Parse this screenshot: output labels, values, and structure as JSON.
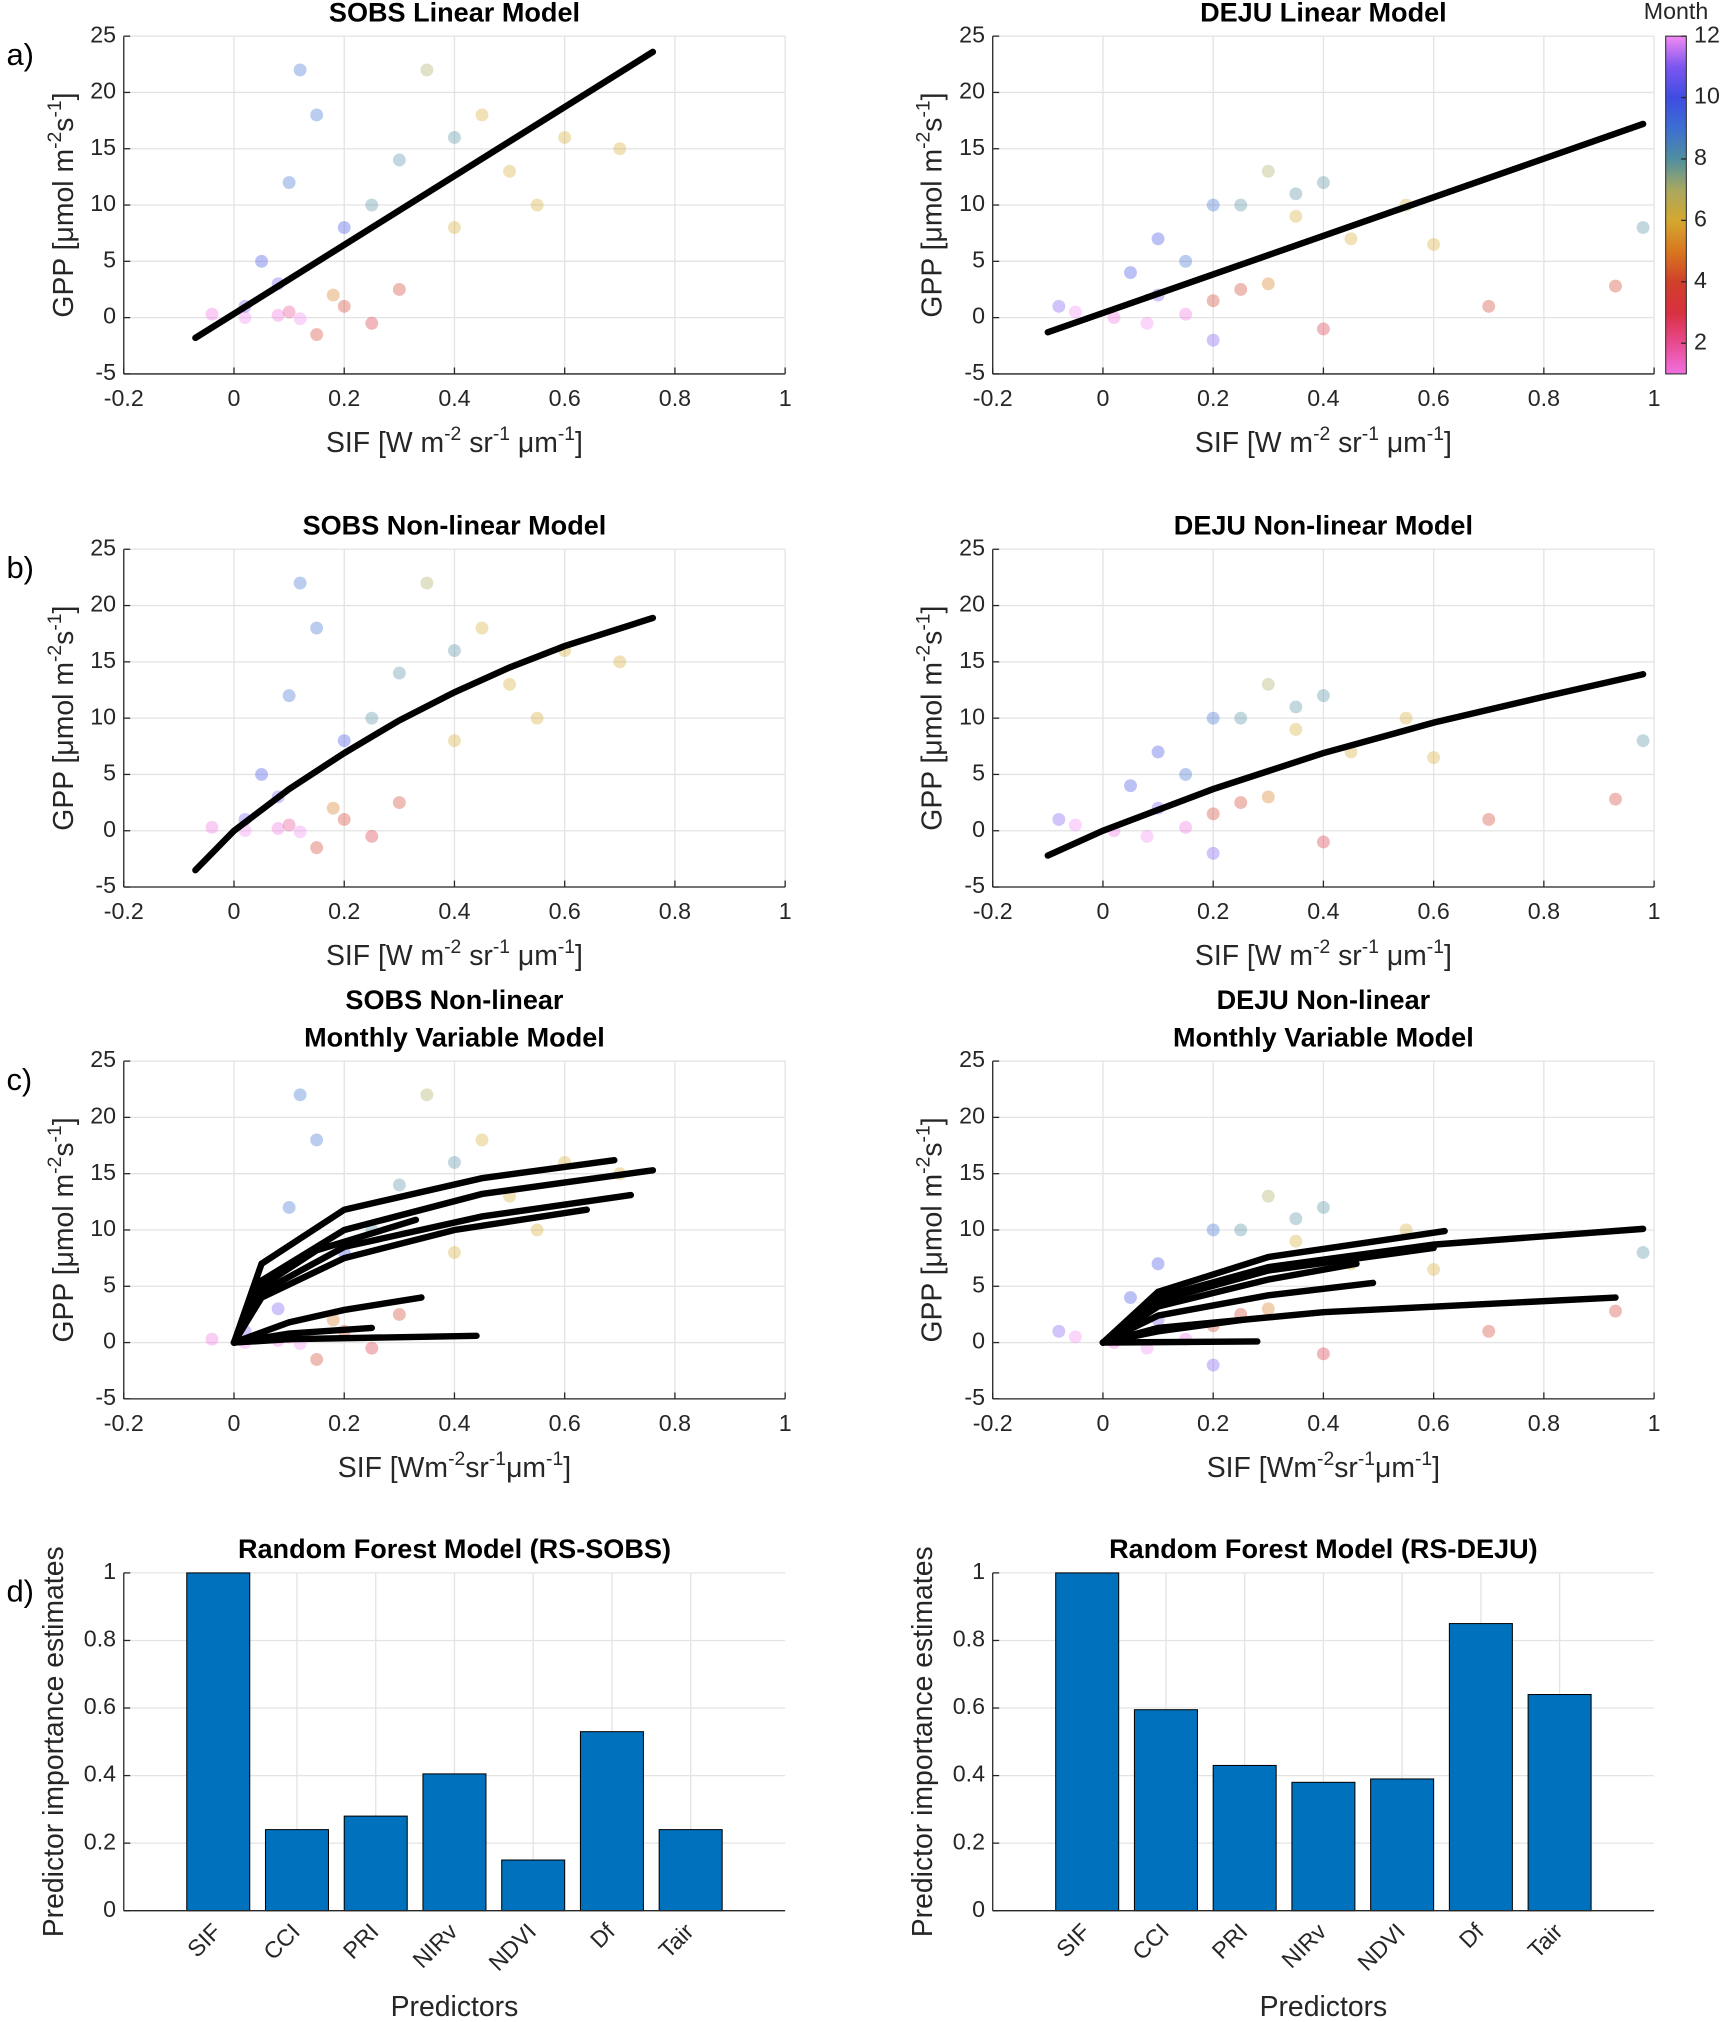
{
  "month_colors": [
    "#f070e0",
    "#e84a90",
    "#d83040",
    "#d0402a",
    "#d8781e",
    "#d4a830",
    "#a8a860",
    "#4f8ea0",
    "#3d6fd2",
    "#3f4ce2",
    "#7c56f0",
    "#f28af2"
  ],
  "chart_data": [
    {
      "type": "scatter",
      "title": "SOBS Linear Model",
      "panel_label": "a)",
      "xlabel": [
        "SIF [W m",
        "-2",
        " sr",
        "-1",
        " μm",
        "-1",
        "]"
      ],
      "ylabel": [
        "GPP [μmol m",
        "-2",
        "s",
        "-1",
        "]"
      ],
      "xlim": [
        -0.2,
        1
      ],
      "ylim": [
        -5,
        25
      ],
      "xticks": [
        -0.2,
        0,
        0.2,
        0.4,
        0.6,
        0.8,
        1
      ],
      "yticks": [
        -5,
        0,
        5,
        10,
        15,
        20,
        25
      ],
      "grid": true,
      "points": {
        "x": [
          0.02,
          0.08,
          0.12,
          -0.04,
          0.1,
          0.15,
          0.2,
          0.25,
          0.3,
          0.18,
          0.4,
          0.5,
          0.55,
          0.6,
          0.45,
          0.7,
          0.35,
          0.3,
          0.4,
          0.25,
          0.05,
          0.1,
          0.15,
          0.2,
          0.08,
          0.02,
          0.12
        ],
        "y": [
          0,
          0.2,
          -0.1,
          0.3,
          0.5,
          -1.5,
          1,
          -0.5,
          2.5,
          2,
          8,
          13,
          10,
          16,
          18,
          15,
          22,
          14,
          16,
          10,
          5,
          12,
          18,
          8,
          3,
          1,
          22
        ],
        "month": [
          12,
          1,
          12,
          1,
          2,
          4,
          4,
          3,
          4,
          5,
          6,
          6,
          6,
          6,
          6,
          6,
          7,
          8,
          8,
          8,
          10,
          9,
          9,
          10,
          11,
          11,
          9
        ]
      },
      "lines": [
        {
          "color": "#000000",
          "x": [
            -0.07,
            0.76
          ],
          "y": [
            -1.8,
            23.6
          ]
        }
      ]
    },
    {
      "type": "scatter",
      "title": "DEJU Linear Model",
      "xlabel": [
        "SIF [W m",
        "-2",
        " sr",
        "-1",
        " μm",
        "-1",
        "]"
      ],
      "ylabel": [
        "GPP [μmol m",
        "-2",
        "s",
        "-1",
        "]"
      ],
      "xlim": [
        -0.2,
        1
      ],
      "ylim": [
        -5,
        25
      ],
      "xticks": [
        -0.2,
        0,
        0.2,
        0.4,
        0.6,
        0.8,
        1
      ],
      "yticks": [
        -5,
        0,
        5,
        10,
        15,
        20,
        25
      ],
      "grid": true,
      "points": {
        "x": [
          -0.05,
          0.02,
          0.08,
          0.15,
          -0.08,
          0.2,
          0.25,
          0.3,
          0.4,
          0.7,
          0.93,
          0.35,
          0.45,
          0.55,
          0.3,
          0.6,
          0.25,
          0.35,
          0.4,
          0.98,
          0.05,
          0.1,
          0.15,
          0.2,
          0.1,
          0.2
        ],
        "y": [
          0.5,
          0,
          -0.5,
          0.3,
          1,
          1.5,
          2.5,
          3,
          -1,
          1,
          2.8,
          9,
          7,
          10,
          13,
          6.5,
          10,
          11,
          12,
          8,
          4,
          7,
          5,
          10,
          2,
          -2
        ],
        "month": [
          12,
          1,
          12,
          1,
          11,
          4,
          4,
          5,
          3,
          4,
          4,
          6,
          6,
          6,
          7,
          6,
          8,
          8,
          8,
          8,
          10,
          10,
          9,
          9,
          11,
          11
        ]
      },
      "lines": [
        {
          "color": "#000000",
          "x": [
            -0.1,
            0.98
          ],
          "y": [
            -1.3,
            17.2
          ]
        }
      ],
      "colorbar": {
        "label": "Month",
        "lim": [
          1,
          12
        ],
        "ticks": [
          2,
          4,
          6,
          8,
          10,
          12
        ]
      }
    },
    {
      "type": "scatter",
      "title": "SOBS Non-linear Model",
      "panel_label": "b)",
      "xlabel": [
        "SIF [W m",
        "-2",
        " sr",
        "-1",
        " μm",
        "-1",
        "]"
      ],
      "ylabel": [
        "GPP [μmol m",
        "-2",
        "s",
        "-1",
        "]"
      ],
      "xlim": [
        -0.2,
        1
      ],
      "ylim": [
        -5,
        25
      ],
      "xticks": [
        -0.2,
        0,
        0.2,
        0.4,
        0.6,
        0.8,
        1
      ],
      "yticks": [
        -5,
        0,
        5,
        10,
        15,
        20,
        25
      ],
      "grid": true,
      "points": {
        "x": [
          0.02,
          0.08,
          0.12,
          -0.04,
          0.1,
          0.15,
          0.2,
          0.25,
          0.3,
          0.18,
          0.4,
          0.5,
          0.55,
          0.6,
          0.45,
          0.7,
          0.35,
          0.3,
          0.4,
          0.25,
          0.05,
          0.1,
          0.15,
          0.2,
          0.08,
          0.02,
          0.12
        ],
        "y": [
          0,
          0.2,
          -0.1,
          0.3,
          0.5,
          -1.5,
          1,
          -0.5,
          2.5,
          2,
          8,
          13,
          10,
          16,
          18,
          15,
          22,
          14,
          16,
          10,
          5,
          12,
          18,
          8,
          3,
          1,
          22
        ],
        "month": [
          12,
          1,
          12,
          1,
          2,
          4,
          4,
          3,
          4,
          5,
          6,
          6,
          6,
          6,
          6,
          6,
          7,
          8,
          8,
          8,
          10,
          9,
          9,
          10,
          11,
          11,
          9
        ]
      },
      "lines": [
        {
          "color": "#000000",
          "x": [
            -0.07,
            0,
            0.1,
            0.2,
            0.3,
            0.4,
            0.5,
            0.6,
            0.76
          ],
          "y": [
            -3.5,
            0,
            3.7,
            6.9,
            9.8,
            12.3,
            14.5,
            16.4,
            18.9
          ]
        }
      ]
    },
    {
      "type": "scatter",
      "title": "DEJU Non-linear Model",
      "xlabel": [
        "SIF [W m",
        "-2",
        " sr",
        "-1",
        " μm",
        "-1",
        "]"
      ],
      "ylabel": [
        "GPP [μmol m",
        "-2",
        "s",
        "-1",
        "]"
      ],
      "xlim": [
        -0.2,
        1
      ],
      "ylim": [
        -5,
        25
      ],
      "xticks": [
        -0.2,
        0,
        0.2,
        0.4,
        0.6,
        0.8,
        1
      ],
      "yticks": [
        -5,
        0,
        5,
        10,
        15,
        20,
        25
      ],
      "grid": true,
      "points": {
        "x": [
          -0.05,
          0.02,
          0.08,
          0.15,
          -0.08,
          0.2,
          0.25,
          0.3,
          0.4,
          0.7,
          0.93,
          0.35,
          0.45,
          0.55,
          0.3,
          0.6,
          0.25,
          0.35,
          0.4,
          0.98,
          0.05,
          0.1,
          0.15,
          0.2,
          0.1,
          0.2
        ],
        "y": [
          0.5,
          0,
          -0.5,
          0.3,
          1,
          1.5,
          2.5,
          3,
          -1,
          1,
          2.8,
          9,
          7,
          10,
          13,
          6.5,
          10,
          11,
          12,
          8,
          4,
          7,
          5,
          10,
          2,
          -2
        ],
        "month": [
          12,
          1,
          12,
          1,
          11,
          4,
          4,
          5,
          3,
          4,
          4,
          6,
          6,
          6,
          7,
          6,
          8,
          8,
          8,
          8,
          10,
          10,
          9,
          9,
          11,
          11
        ]
      },
      "lines": [
        {
          "color": "#000000",
          "x": [
            -0.1,
            0,
            0.2,
            0.4,
            0.6,
            0.8,
            0.98
          ],
          "y": [
            -2.2,
            0,
            3.7,
            6.9,
            9.6,
            11.9,
            13.9
          ]
        }
      ]
    },
    {
      "type": "scatter",
      "title": [
        "SOBS Non-linear",
        "Monthly Variable Model"
      ],
      "panel_label": "c)",
      "xlabel": [
        "SIF [Wm",
        "-2",
        "sr",
        "-1",
        "μm",
        "-1",
        "]"
      ],
      "ylabel": [
        "GPP [μmol m",
        "-2",
        "s",
        "-1",
        "]"
      ],
      "xlim": [
        -0.2,
        1
      ],
      "ylim": [
        -5,
        25
      ],
      "xticks": [
        -0.2,
        0,
        0.2,
        0.4,
        0.6,
        0.8,
        1
      ],
      "yticks": [
        -5,
        0,
        5,
        10,
        15,
        20,
        25
      ],
      "grid": true,
      "points": {
        "x": [
          0.02,
          0.08,
          0.12,
          -0.04,
          0.1,
          0.15,
          0.2,
          0.25,
          0.3,
          0.18,
          0.4,
          0.5,
          0.55,
          0.6,
          0.45,
          0.7,
          0.35,
          0.3,
          0.4,
          0.25,
          0.05,
          0.1,
          0.15,
          0.2,
          0.08,
          0.02,
          0.12
        ],
        "y": [
          0,
          0.2,
          -0.1,
          0.3,
          0.5,
          -1.5,
          1,
          -0.5,
          2.5,
          2,
          8,
          13,
          10,
          16,
          18,
          15,
          22,
          14,
          16,
          10,
          5,
          12,
          18,
          8,
          3,
          1,
          22
        ],
        "month": [
          12,
          1,
          12,
          1,
          2,
          4,
          4,
          3,
          4,
          5,
          6,
          6,
          6,
          6,
          6,
          6,
          7,
          8,
          8,
          8,
          10,
          9,
          9,
          10,
          11,
          11,
          9
        ]
      },
      "lines": [
        {
          "color": "#000000",
          "x": [
            0,
            0.05,
            0.2,
            0.45,
            0.69
          ],
          "y": [
            0,
            7,
            11.8,
            14.6,
            16.2
          ]
        },
        {
          "color": "#000000",
          "x": [
            0,
            0.05,
            0.2,
            0.45,
            0.76
          ],
          "y": [
            0,
            5.5,
            10,
            13.2,
            15.3
          ]
        },
        {
          "color": "#000000",
          "x": [
            0,
            0.05,
            0.2,
            0.45,
            0.72
          ],
          "y": [
            0,
            4.5,
            8.5,
            11.2,
            13.1
          ]
        },
        {
          "color": "#000000",
          "x": [
            0,
            0.05,
            0.2,
            0.4,
            0.64
          ],
          "y": [
            0,
            4,
            7.5,
            10,
            11.8
          ]
        },
        {
          "color": "#000000",
          "x": [
            0,
            0.05,
            0.15,
            0.33
          ],
          "y": [
            0,
            5,
            8.2,
            10.9
          ]
        },
        {
          "color": "#000000",
          "x": [
            0,
            0.1,
            0.2,
            0.34
          ],
          "y": [
            0,
            1.8,
            2.9,
            4
          ]
        },
        {
          "color": "#000000",
          "x": [
            0,
            0.1,
            0.25
          ],
          "y": [
            0,
            0.8,
            1.3
          ]
        },
        {
          "color": "#000000",
          "x": [
            0,
            0.1,
            0.44
          ],
          "y": [
            0,
            0.3,
            0.6
          ]
        }
      ]
    },
    {
      "type": "scatter",
      "title": [
        "DEJU Non-linear",
        "Monthly Variable Model"
      ],
      "xlabel": [
        "SIF [Wm",
        "-2",
        "sr",
        "-1",
        "μm",
        "-1",
        "]"
      ],
      "ylabel": [
        "GPP [μmol m",
        "-2",
        "s",
        "-1",
        "]"
      ],
      "xlim": [
        -0.2,
        1
      ],
      "ylim": [
        -5,
        25
      ],
      "xticks": [
        -0.2,
        0,
        0.2,
        0.4,
        0.6,
        0.8,
        1
      ],
      "yticks": [
        -5,
        0,
        5,
        10,
        15,
        20,
        25
      ],
      "grid": true,
      "points": {
        "x": [
          -0.05,
          0.02,
          0.08,
          0.15,
          -0.08,
          0.2,
          0.25,
          0.3,
          0.4,
          0.7,
          0.93,
          0.35,
          0.45,
          0.55,
          0.3,
          0.6,
          0.25,
          0.35,
          0.4,
          0.98,
          0.05,
          0.1,
          0.15,
          0.2,
          0.1,
          0.2
        ],
        "y": [
          0.5,
          0,
          -0.5,
          0.3,
          1,
          1.5,
          2.5,
          3,
          -1,
          1,
          2.8,
          9,
          7,
          10,
          13,
          6.5,
          10,
          11,
          12,
          8,
          4,
          7,
          5,
          10,
          2,
          -2
        ],
        "month": [
          12,
          1,
          12,
          1,
          11,
          4,
          4,
          5,
          3,
          4,
          4,
          6,
          6,
          6,
          7,
          6,
          8,
          8,
          8,
          8,
          10,
          10,
          9,
          9,
          11,
          11
        ]
      },
      "lines": [
        {
          "color": "#000000",
          "x": [
            0,
            0.1,
            0.3,
            0.6,
            0.98
          ],
          "y": [
            0,
            4,
            6.7,
            8.7,
            10.1
          ]
        },
        {
          "color": "#000000",
          "x": [
            0,
            0.1,
            0.3,
            0.62
          ],
          "y": [
            0,
            4.5,
            7.6,
            9.9
          ]
        },
        {
          "color": "#000000",
          "x": [
            0,
            0.1,
            0.3,
            0.6
          ],
          "y": [
            0,
            3.7,
            6.4,
            8.4
          ]
        },
        {
          "color": "#000000",
          "x": [
            0,
            0.1,
            0.3,
            0.46
          ],
          "y": [
            0,
            3.2,
            5.6,
            7
          ]
        },
        {
          "color": "#000000",
          "x": [
            0,
            0.1,
            0.3,
            0.49
          ],
          "y": [
            0,
            2.4,
            4.2,
            5.3
          ]
        },
        {
          "color": "#000000",
          "x": [
            0,
            0.1,
            0.4,
            0.93
          ],
          "y": [
            0,
            1.3,
            2.7,
            4
          ]
        },
        {
          "color": "#000000",
          "x": [
            0,
            0.1,
            0.25
          ],
          "y": [
            0,
            1,
            2
          ]
        },
        {
          "color": "#000000",
          "x": [
            0,
            0.28
          ],
          "y": [
            0,
            0.1
          ]
        }
      ]
    },
    {
      "type": "bar",
      "title": "Random Forest Model (RS-SOBS)",
      "panel_label": "d)",
      "xlabel": "Predictors",
      "ylabel": "Predictor importance estimates",
      "categories": [
        "SIF",
        "CCI",
        "PRI",
        "NIRv",
        "NDVI",
        "Df",
        "Tair"
      ],
      "values": [
        1,
        0.24,
        0.28,
        0.405,
        0.15,
        0.53,
        0.24
      ],
      "color": "#0072bd",
      "ylim": [
        0,
        1
      ],
      "yticks": [
        0,
        0.2,
        0.4,
        0.6,
        0.8,
        1
      ],
      "grid": true
    },
    {
      "type": "bar",
      "title": "Random Forest Model (RS-DEJU)",
      "xlabel": "Predictors",
      "ylabel": "Predictor importance estimates",
      "categories": [
        "SIF",
        "CCI",
        "PRI",
        "NIRv",
        "NDVI",
        "Df",
        "Tair"
      ],
      "values": [
        1,
        0.595,
        0.43,
        0.38,
        0.39,
        0.85,
        0.64
      ],
      "color": "#0072bd",
      "ylim": [
        0,
        1
      ],
      "yticks": [
        0,
        0.2,
        0.4,
        0.6,
        0.8,
        1
      ],
      "grid": true
    }
  ]
}
